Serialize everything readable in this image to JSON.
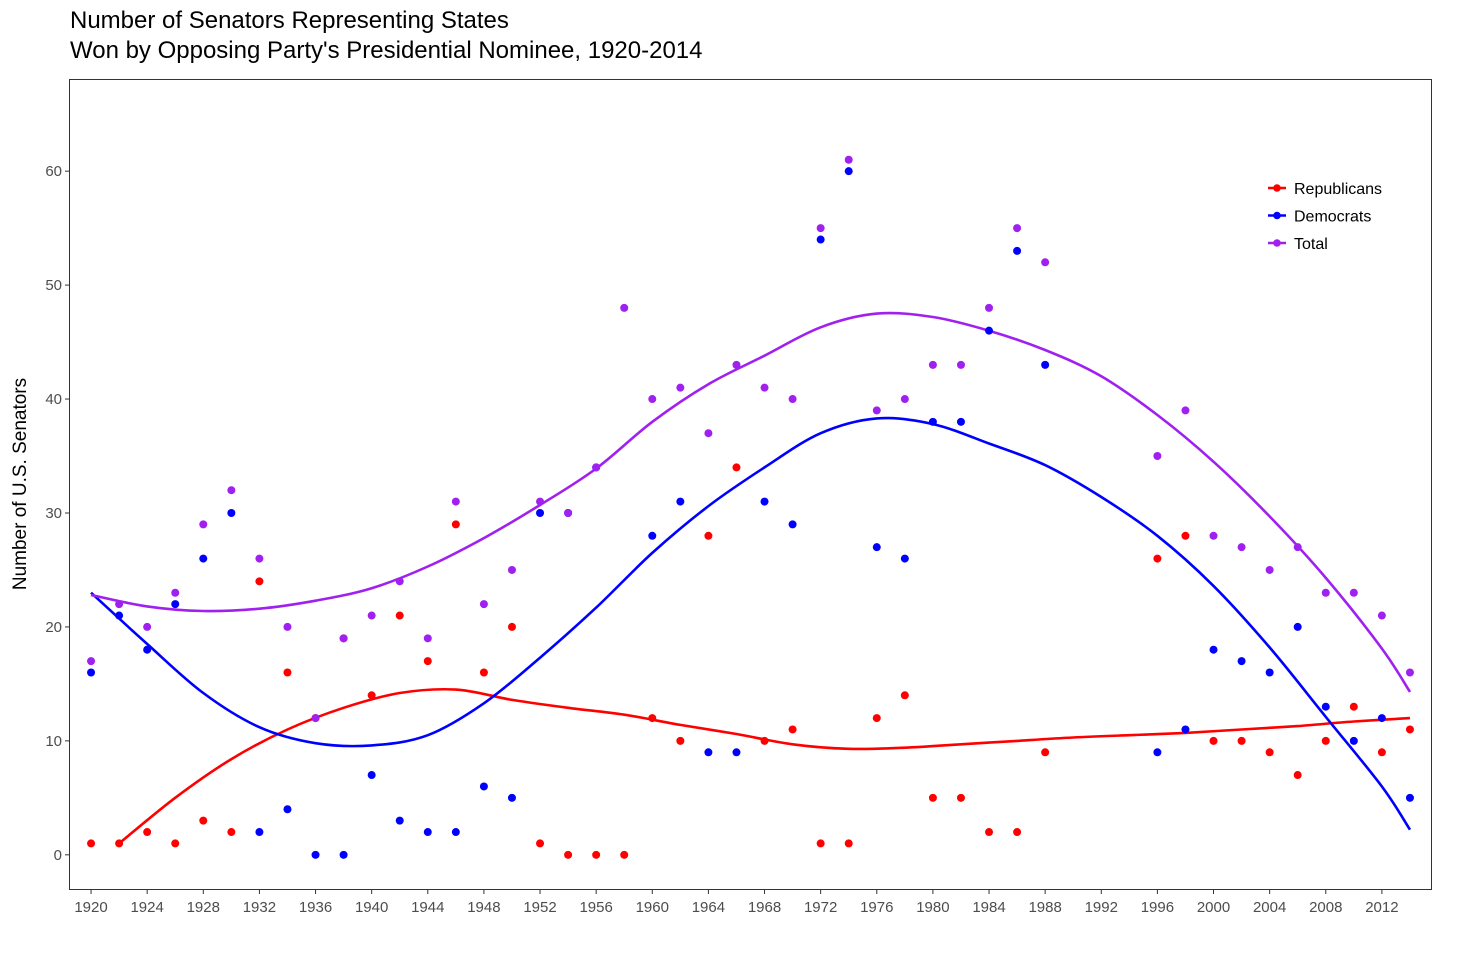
{
  "chart_data": {
    "type": "scatter",
    "title": "Number of Senators Representing States",
    "subtitle": "Won by Opposing Party's Presidential Nominee, 1920-2014",
    "xlabel": "",
    "ylabel": "Number of U.S. Senators",
    "xlim": [
      1918.5,
      2015.5
    ],
    "ylim": [
      -3,
      68
    ],
    "x_ticks": [
      1920,
      1924,
      1928,
      1932,
      1936,
      1940,
      1944,
      1948,
      1952,
      1956,
      1960,
      1964,
      1968,
      1972,
      1976,
      1980,
      1984,
      1988,
      1992,
      1996,
      2000,
      2004,
      2008,
      2012
    ],
    "y_ticks": [
      0,
      10,
      20,
      30,
      40,
      50,
      60
    ],
    "grid": false,
    "legend_position": "top-right",
    "series": [
      {
        "name": "Republicans",
        "color": "#ff0000",
        "x": [
          1920,
          1922,
          1924,
          1926,
          1928,
          1930,
          1932,
          1934,
          1936,
          1938,
          1940,
          1942,
          1944,
          1946,
          1948,
          1950,
          1952,
          1954,
          1956,
          1958,
          1960,
          1962,
          1964,
          1966,
          1968,
          1970,
          1972,
          1974,
          1976,
          1978,
          1980,
          1982,
          1984,
          1986,
          1988,
          1996,
          1998,
          2000,
          2002,
          2004,
          2006,
          2008,
          2010,
          2012,
          2014
        ],
        "values": [
          1,
          1,
          2,
          1,
          3,
          2,
          24,
          16,
          12,
          19,
          14,
          21,
          17,
          29,
          16,
          20,
          1,
          0,
          0,
          0,
          12,
          10,
          28,
          34,
          10,
          11,
          1,
          1,
          12,
          14,
          5,
          5,
          2,
          2,
          9,
          26,
          28,
          10,
          10,
          9,
          7,
          10,
          13,
          9,
          11
        ],
        "trend": {
          "x": [
            1922,
            1926,
            1930,
            1934,
            1938,
            1942,
            1946,
            1950,
            1954,
            1958,
            1962,
            1966,
            1970,
            1974,
            1978,
            1982,
            1986,
            1990,
            1994,
            1998,
            2002,
            2006,
            2010,
            2014
          ],
          "values": [
            1.0,
            5.0,
            8.4,
            11.0,
            12.9,
            14.2,
            14.5,
            13.6,
            12.9,
            12.3,
            11.4,
            10.6,
            9.7,
            9.3,
            9.4,
            9.7,
            10.0,
            10.3,
            10.5,
            10.7,
            11.0,
            11.3,
            11.7,
            12.0
          ]
        }
      },
      {
        "name": "Democrats",
        "color": "#0000ff",
        "x": [
          1920,
          1922,
          1924,
          1926,
          1928,
          1930,
          1932,
          1934,
          1936,
          1938,
          1940,
          1942,
          1944,
          1946,
          1948,
          1950,
          1952,
          1954,
          1956,
          1960,
          1962,
          1964,
          1966,
          1968,
          1970,
          1972,
          1974,
          1976,
          1978,
          1980,
          1982,
          1984,
          1986,
          1988,
          1996,
          1998,
          2000,
          2002,
          2004,
          2006,
          2008,
          2010,
          2012,
          2014
        ],
        "values": [
          16,
          21,
          18,
          22,
          26,
          30,
          2,
          4,
          0,
          0,
          7,
          3,
          2,
          2,
          6,
          5,
          30,
          30,
          34,
          28,
          31,
          9,
          9,
          31,
          29,
          54,
          60,
          27,
          26,
          38,
          38,
          46,
          53,
          43,
          9,
          11,
          18,
          17,
          16,
          20,
          13,
          10,
          12,
          5
        ],
        "trend": {
          "x": [
            1920,
            1924,
            1928,
            1932,
            1936,
            1940,
            1944,
            1948,
            1952,
            1956,
            1960,
            1964,
            1968,
            1972,
            1976,
            1980,
            1984,
            1988,
            1992,
            1996,
            2000,
            2004,
            2008,
            2012,
            2014
          ],
          "values": [
            23.0,
            18.5,
            14.2,
            11.2,
            9.8,
            9.6,
            10.5,
            13.3,
            17.3,
            21.7,
            26.5,
            30.6,
            34.0,
            37.0,
            38.3,
            37.8,
            36.1,
            34.2,
            31.4,
            28.0,
            23.6,
            18.2,
            12.1,
            6.0,
            2.2
          ]
        }
      },
      {
        "name": "Total",
        "color": "#a020f0",
        "x": [
          1920,
          1922,
          1924,
          1926,
          1928,
          1930,
          1932,
          1934,
          1936,
          1938,
          1940,
          1942,
          1944,
          1946,
          1948,
          1950,
          1952,
          1954,
          1956,
          1958,
          1960,
          1962,
          1964,
          1966,
          1968,
          1970,
          1972,
          1974,
          1976,
          1978,
          1980,
          1982,
          1984,
          1986,
          1988,
          1996,
          1998,
          2000,
          2002,
          2004,
          2006,
          2008,
          2010,
          2012,
          2014
        ],
        "values": [
          17,
          22,
          20,
          23,
          29,
          32,
          26,
          20,
          12,
          19,
          21,
          24,
          19,
          31,
          22,
          25,
          31,
          30,
          34,
          48,
          40,
          41,
          37,
          43,
          41,
          40,
          55,
          61,
          39,
          40,
          43,
          43,
          48,
          55,
          52,
          35,
          39,
          28,
          27,
          25,
          27,
          23,
          23,
          21,
          16
        ],
        "trend": {
          "x": [
            1920,
            1924,
            1928,
            1932,
            1936,
            1940,
            1944,
            1948,
            1952,
            1956,
            1960,
            1964,
            1968,
            1972,
            1976,
            1980,
            1984,
            1988,
            1992,
            1996,
            2000,
            2004,
            2008,
            2012,
            2014
          ],
          "values": [
            22.8,
            21.8,
            21.4,
            21.6,
            22.3,
            23.4,
            25.3,
            27.8,
            30.7,
            33.9,
            38.0,
            41.3,
            43.8,
            46.3,
            47.5,
            47.2,
            46.0,
            44.3,
            42.0,
            38.6,
            34.5,
            29.7,
            24.3,
            18.1,
            14.3
          ]
        }
      }
    ]
  }
}
